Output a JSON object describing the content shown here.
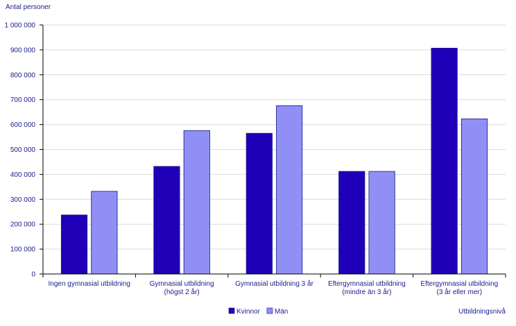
{
  "chart_data": {
    "type": "bar",
    "ylabel": "Antal personer",
    "xlabel": "Utbildningsnivå",
    "ylim": [
      0,
      1000000
    ],
    "yticks": [
      0,
      100000,
      200000,
      300000,
      400000,
      500000,
      600000,
      700000,
      800000,
      900000,
      1000000
    ],
    "ytick_labels": [
      "0",
      "100 000",
      "200 000",
      "300 000",
      "400 000",
      "500 000",
      "600 000",
      "700 000",
      "800 000",
      "900 000",
      "1 000 000"
    ],
    "grid": true,
    "legend_position": "bottom",
    "categories": [
      [
        "Ingen gymnasial utbildning"
      ],
      [
        "Gymnasial utbildning",
        "(högst 2 år)"
      ],
      [
        "Gymnasial utbildning 3 år"
      ],
      [
        "Eftergymnasial utbildning",
        "(mindre än 3 år)"
      ],
      [
        "Eftergymnasial utbildning",
        "(3 år eller mer)"
      ]
    ],
    "series": [
      {
        "name": "Kvinnor",
        "color": "#1f00b8",
        "values": [
          237000,
          432000,
          565000,
          412000,
          907000
        ]
      },
      {
        "name": "Män",
        "color": "#8f8ff5",
        "values": [
          332000,
          576000,
          676000,
          412000,
          623000
        ]
      }
    ]
  }
}
